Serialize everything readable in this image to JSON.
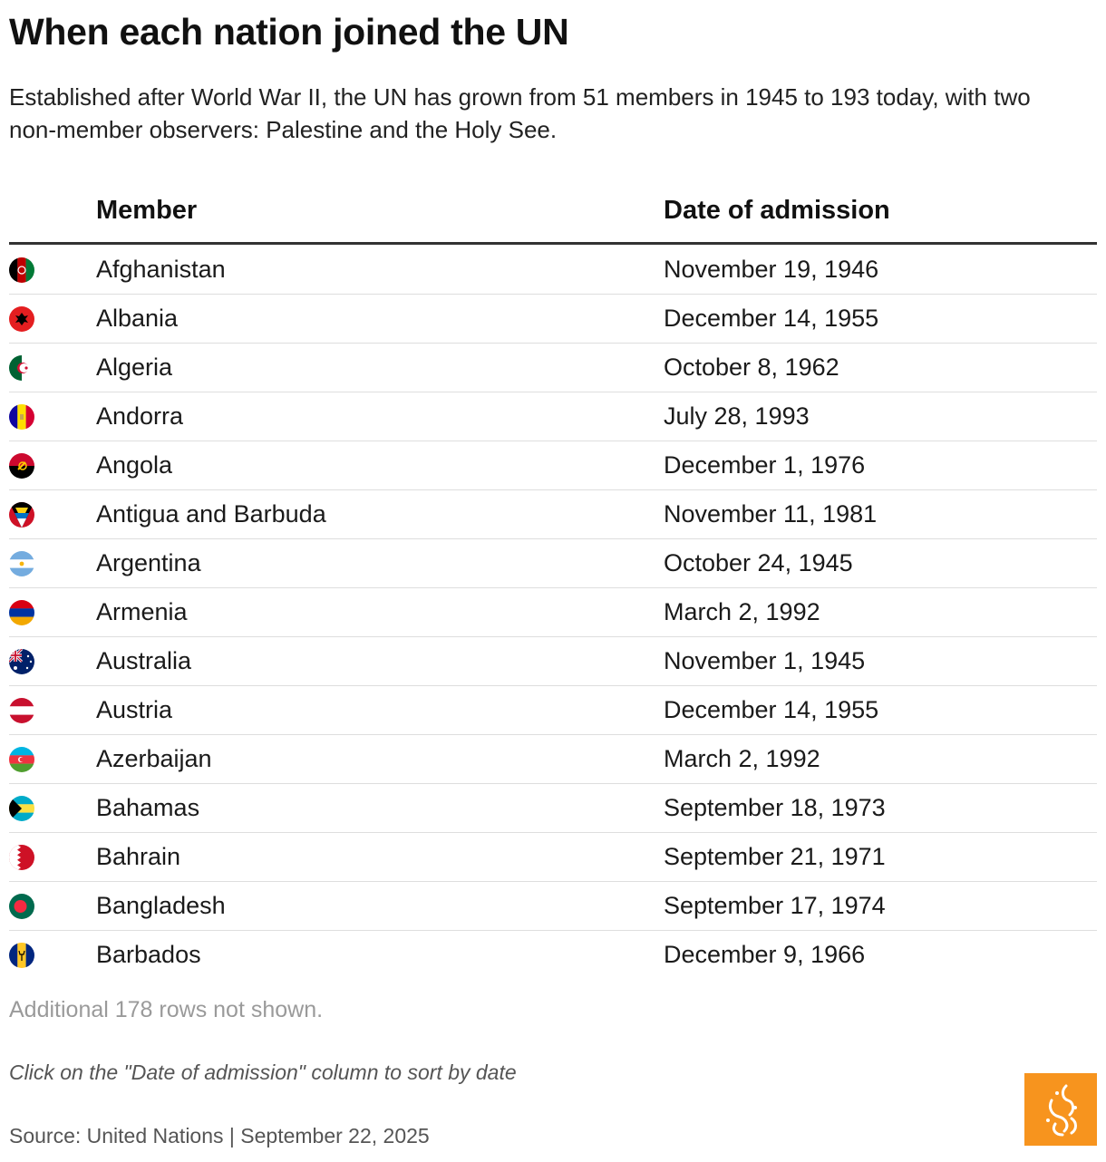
{
  "header": {
    "title": "When each nation joined the UN",
    "subtitle": "Established after World War II, the UN has grown from 51 members in 1945 to 193 today, with two non-member observers: Palestine and the Holy See."
  },
  "chart_data": {
    "type": "table",
    "columns": [
      "Member",
      "Date of admission"
    ],
    "rows": [
      {
        "member": "Afghanistan",
        "date": "November 19, 1946",
        "flag": "afghanistan-flag-icon"
      },
      {
        "member": "Albania",
        "date": "December 14, 1955",
        "flag": "albania-flag-icon"
      },
      {
        "member": "Algeria",
        "date": "October 8, 1962",
        "flag": "algeria-flag-icon"
      },
      {
        "member": "Andorra",
        "date": "July 28, 1993",
        "flag": "andorra-flag-icon"
      },
      {
        "member": "Angola",
        "date": "December 1, 1976",
        "flag": "angola-flag-icon"
      },
      {
        "member": "Antigua and Barbuda",
        "date": "November 11, 1981",
        "flag": "antigua-and-barbuda-flag-icon"
      },
      {
        "member": "Argentina",
        "date": "October 24, 1945",
        "flag": "argentina-flag-icon"
      },
      {
        "member": "Armenia",
        "date": "March 2, 1992",
        "flag": "armenia-flag-icon"
      },
      {
        "member": "Australia",
        "date": "November 1, 1945",
        "flag": "australia-flag-icon"
      },
      {
        "member": "Austria",
        "date": "December 14, 1955",
        "flag": "austria-flag-icon"
      },
      {
        "member": "Azerbaijan",
        "date": "March 2, 1992",
        "flag": "azerbaijan-flag-icon"
      },
      {
        "member": "Bahamas",
        "date": "September 18, 1973",
        "flag": "bahamas-flag-icon"
      },
      {
        "member": "Bahrain",
        "date": "September 21, 1971",
        "flag": "bahrain-flag-icon"
      },
      {
        "member": "Bangladesh",
        "date": "September 17, 1974",
        "flag": "bangladesh-flag-icon"
      },
      {
        "member": "Barbados",
        "date": "December 9, 1966",
        "flag": "barbados-flag-icon"
      }
    ]
  },
  "footer": {
    "more_rows": "Additional 178 rows not shown.",
    "note": "Click on the \"Date of admission\" column to sort by date",
    "source": "Source: United Nations | September 22, 2025"
  },
  "colors": {
    "accent": "#f7941e",
    "header_rule": "#333333",
    "row_divider": "#dedede"
  },
  "logo_icon": "al-jazeera-logo-icon"
}
